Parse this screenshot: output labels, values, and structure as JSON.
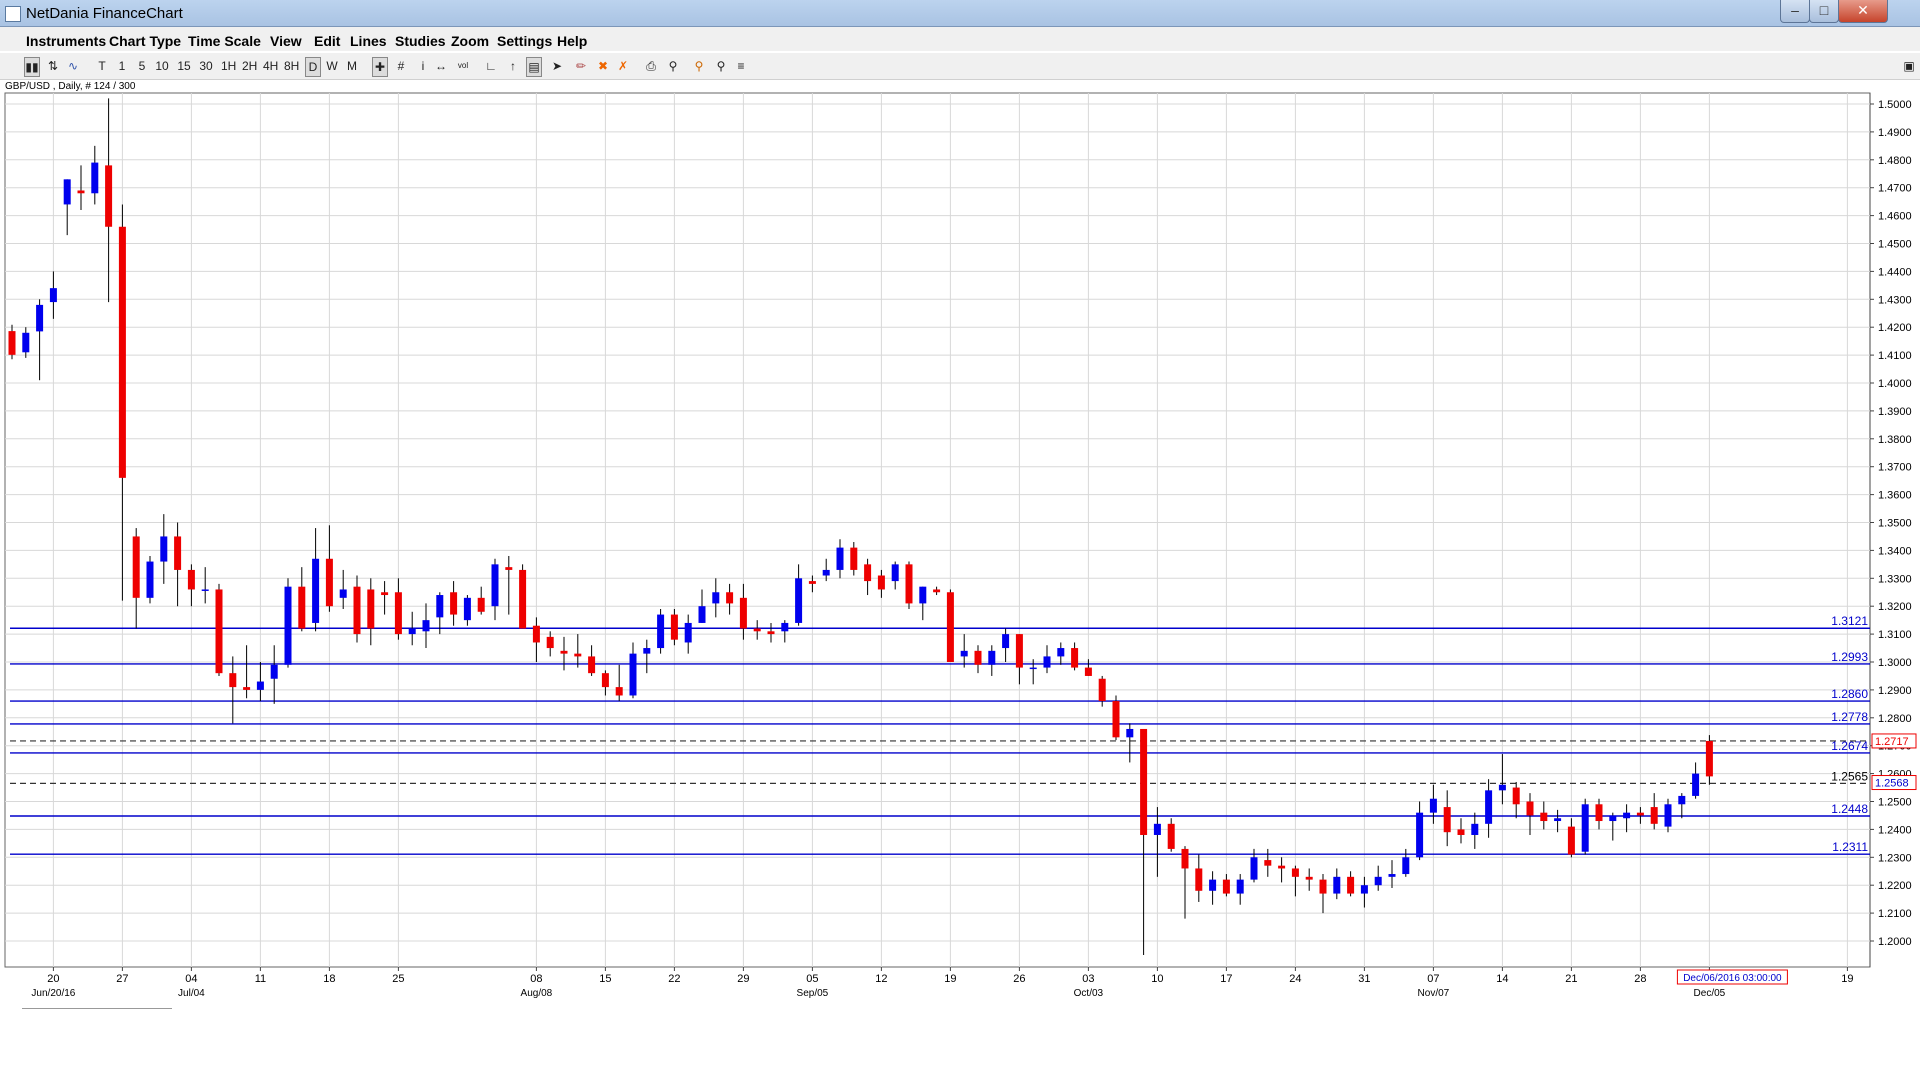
{
  "window": {
    "title": "NetDania FinanceChart",
    "controls": {
      "minimize": "–",
      "maximize": "□",
      "close": "✕"
    }
  },
  "menu": [
    "Instruments",
    "Chart Type",
    "Time Scale",
    "View",
    "Edit",
    "Lines",
    "Studies",
    "Zoom",
    "Settings",
    "Help"
  ],
  "toolbar": {
    "timeframes": [
      "T",
      "1",
      "5",
      "10",
      "15",
      "30",
      "1H",
      "2H",
      "4H",
      "8H",
      "D",
      "W",
      "M"
    ],
    "selected_timeframe": "D",
    "icons": [
      "candles-icon",
      "bars-icon",
      "line-icon",
      "crosshair-icon",
      "grid-icon",
      "info-icon",
      "arrows-icon",
      "volume-icon",
      "trendline-icon",
      "fib-icon",
      "channel-icon",
      "pointer-icon",
      "draw-icon",
      "delete-icon",
      "delete-all-icon",
      "print-icon",
      "zoom-region-icon",
      "zoom-in-icon",
      "zoom-out-icon",
      "fit-icon"
    ]
  },
  "symbol_info": "GBP/USD , Daily, # 124 / 300",
  "colors": {
    "up": "#0000ee",
    "down": "#ee0000",
    "level": "#0000cc",
    "grid": "#d8d8d8",
    "marker": "#ee0000"
  },
  "chart_data": {
    "type": "candlestick",
    "ylim": [
      1.19,
      1.51
    ],
    "y_ticks": [
      "1.2000",
      "1.2100",
      "1.2200",
      "1.2300",
      "1.2400",
      "1.2500",
      "1.2600",
      "1.2700",
      "1.2800",
      "1.2900",
      "1.3000",
      "1.3100",
      "1.3200",
      "1.3300",
      "1.3400",
      "1.3500",
      "1.3600",
      "1.3700",
      "1.3800",
      "1.3900",
      "1.4000",
      "1.4100",
      "1.4200",
      "1.4300",
      "1.4400",
      "1.4500",
      "1.4600",
      "1.4700",
      "1.4800",
      "1.4900",
      "1.5000"
    ],
    "x_labels": [
      {
        "day": "20",
        "month": "Jun/20/16",
        "i": 3
      },
      {
        "day": "27",
        "month": "",
        "i": 8
      },
      {
        "day": "04",
        "month": "Jul/04",
        "i": 13
      },
      {
        "day": "11",
        "month": "",
        "i": 18
      },
      {
        "day": "18",
        "month": "",
        "i": 23
      },
      {
        "day": "25",
        "month": "",
        "i": 28
      },
      {
        "day": "08",
        "month": "Aug/08",
        "i": 38
      },
      {
        "day": "15",
        "month": "",
        "i": 43
      },
      {
        "day": "22",
        "month": "",
        "i": 48
      },
      {
        "day": "29",
        "month": "",
        "i": 53
      },
      {
        "day": "05",
        "month": "Sep/05",
        "i": 58
      },
      {
        "day": "12",
        "month": "",
        "i": 63
      },
      {
        "day": "19",
        "month": "",
        "i": 68
      },
      {
        "day": "26",
        "month": "",
        "i": 73
      },
      {
        "day": "03",
        "month": "Oct/03",
        "i": 78
      },
      {
        "day": "10",
        "month": "",
        "i": 83
      },
      {
        "day": "17",
        "month": "",
        "i": 88
      },
      {
        "day": "24",
        "month": "",
        "i": 93
      },
      {
        "day": "31",
        "month": "",
        "i": 98
      },
      {
        "day": "07",
        "month": "Nov/07",
        "i": 103
      },
      {
        "day": "14",
        "month": "",
        "i": 108
      },
      {
        "day": "21",
        "month": "",
        "i": 113
      },
      {
        "day": "28",
        "month": "",
        "i": 118
      },
      {
        "day": "",
        "month": "Dec/05",
        "i": 123
      },
      {
        "day": "19",
        "month": "",
        "i": 133
      }
    ],
    "levels": [
      {
        "value": 1.3121,
        "label": "1.3121",
        "style": "solid"
      },
      {
        "value": 1.2993,
        "label": "1.2993",
        "style": "solid"
      },
      {
        "value": 1.286,
        "label": "1.2860",
        "style": "solid"
      },
      {
        "value": 1.2778,
        "label": "1.2778",
        "style": "solid"
      },
      {
        "value": 1.2674,
        "label": "1.2674",
        "style": "solid"
      },
      {
        "value": 1.2448,
        "label": "1.2448",
        "style": "solid"
      },
      {
        "value": 1.2311,
        "label": "1.2311",
        "style": "solid"
      },
      {
        "value": 1.2717,
        "label": "",
        "style": "dashed"
      },
      {
        "value": 1.2565,
        "label": "1.2565",
        "style": "dashed"
      }
    ],
    "price_markers": [
      {
        "label": "1.2717",
        "value": 1.2717
      },
      {
        "label": "1.2568",
        "value": 1.2568
      }
    ],
    "cursor_date": "Dec/06/2016 03:00:00",
    "candles": [
      {
        "o": 1.4186,
        "h": 1.4209,
        "l": 1.4085,
        "c": 1.4101
      },
      {
        "o": 1.411,
        "h": 1.42,
        "l": 1.409,
        "c": 1.418
      },
      {
        "o": 1.4185,
        "h": 1.43,
        "l": 1.401,
        "c": 1.428
      },
      {
        "o": 1.429,
        "h": 1.44,
        "l": 1.423,
        "c": 1.434
      },
      {
        "o": 1.464,
        "h": 1.473,
        "l": 1.453,
        "c": 1.473
      },
      {
        "o": 1.469,
        "h": 1.478,
        "l": 1.462,
        "c": 1.468
      },
      {
        "o": 1.468,
        "h": 1.485,
        "l": 1.464,
        "c": 1.479
      },
      {
        "o": 1.478,
        "h": 1.502,
        "l": 1.429,
        "c": 1.456
      },
      {
        "o": 1.456,
        "h": 1.464,
        "l": 1.322,
        "c": 1.366
      },
      {
        "o": 1.345,
        "h": 1.348,
        "l": 1.312,
        "c": 1.323
      },
      {
        "o": 1.323,
        "h": 1.338,
        "l": 1.321,
        "c": 1.336
      },
      {
        "o": 1.336,
        "h": 1.353,
        "l": 1.328,
        "c": 1.345
      },
      {
        "o": 1.345,
        "h": 1.35,
        "l": 1.32,
        "c": 1.333
      },
      {
        "o": 1.333,
        "h": 1.335,
        "l": 1.32,
        "c": 1.326
      },
      {
        "o": 1.326,
        "h": 1.334,
        "l": 1.321,
        "c": 1.326
      },
      {
        "o": 1.326,
        "h": 1.328,
        "l": 1.295,
        "c": 1.296
      },
      {
        "o": 1.296,
        "h": 1.302,
        "l": 1.278,
        "c": 1.291
      },
      {
        "o": 1.291,
        "h": 1.306,
        "l": 1.287,
        "c": 1.29
      },
      {
        "o": 1.29,
        "h": 1.3,
        "l": 1.286,
        "c": 1.293
      },
      {
        "o": 1.294,
        "h": 1.306,
        "l": 1.285,
        "c": 1.299
      },
      {
        "o": 1.299,
        "h": 1.33,
        "l": 1.298,
        "c": 1.327
      },
      {
        "o": 1.327,
        "h": 1.334,
        "l": 1.311,
        "c": 1.312
      },
      {
        "o": 1.314,
        "h": 1.348,
        "l": 1.311,
        "c": 1.337
      },
      {
        "o": 1.337,
        "h": 1.349,
        "l": 1.318,
        "c": 1.32
      },
      {
        "o": 1.323,
        "h": 1.333,
        "l": 1.319,
        "c": 1.326
      },
      {
        "o": 1.327,
        "h": 1.331,
        "l": 1.307,
        "c": 1.31
      },
      {
        "o": 1.326,
        "h": 1.33,
        "l": 1.306,
        "c": 1.312
      },
      {
        "o": 1.325,
        "h": 1.329,
        "l": 1.317,
        "c": 1.324
      },
      {
        "o": 1.325,
        "h": 1.33,
        "l": 1.308,
        "c": 1.31
      },
      {
        "o": 1.31,
        "h": 1.318,
        "l": 1.306,
        "c": 1.312
      },
      {
        "o": 1.311,
        "h": 1.321,
        "l": 1.305,
        "c": 1.315
      },
      {
        "o": 1.316,
        "h": 1.325,
        "l": 1.31,
        "c": 1.324
      },
      {
        "o": 1.325,
        "h": 1.329,
        "l": 1.313,
        "c": 1.317
      },
      {
        "o": 1.315,
        "h": 1.324,
        "l": 1.313,
        "c": 1.323
      },
      {
        "o": 1.323,
        "h": 1.327,
        "l": 1.317,
        "c": 1.318
      },
      {
        "o": 1.32,
        "h": 1.337,
        "l": 1.315,
        "c": 1.335
      },
      {
        "o": 1.334,
        "h": 1.338,
        "l": 1.317,
        "c": 1.333
      },
      {
        "o": 1.333,
        "h": 1.335,
        "l": 1.312,
        "c": 1.312
      },
      {
        "o": 1.313,
        "h": 1.316,
        "l": 1.3,
        "c": 1.307
      },
      {
        "o": 1.309,
        "h": 1.311,
        "l": 1.302,
        "c": 1.305
      },
      {
        "o": 1.304,
        "h": 1.309,
        "l": 1.297,
        "c": 1.303
      },
      {
        "o": 1.303,
        "h": 1.31,
        "l": 1.298,
        "c": 1.302
      },
      {
        "o": 1.302,
        "h": 1.306,
        "l": 1.295,
        "c": 1.296
      },
      {
        "o": 1.296,
        "h": 1.297,
        "l": 1.288,
        "c": 1.291
      },
      {
        "o": 1.291,
        "h": 1.299,
        "l": 1.286,
        "c": 1.288
      },
      {
        "o": 1.288,
        "h": 1.307,
        "l": 1.287,
        "c": 1.303
      },
      {
        "o": 1.303,
        "h": 1.308,
        "l": 1.296,
        "c": 1.305
      },
      {
        "o": 1.305,
        "h": 1.319,
        "l": 1.303,
        "c": 1.317
      },
      {
        "o": 1.317,
        "h": 1.319,
        "l": 1.306,
        "c": 1.308
      },
      {
        "o": 1.307,
        "h": 1.317,
        "l": 1.303,
        "c": 1.314
      },
      {
        "o": 1.314,
        "h": 1.326,
        "l": 1.314,
        "c": 1.32
      },
      {
        "o": 1.321,
        "h": 1.33,
        "l": 1.316,
        "c": 1.325
      },
      {
        "o": 1.325,
        "h": 1.328,
        "l": 1.317,
        "c": 1.321
      },
      {
        "o": 1.323,
        "h": 1.328,
        "l": 1.308,
        "c": 1.312
      },
      {
        "o": 1.312,
        "h": 1.315,
        "l": 1.308,
        "c": 1.311
      },
      {
        "o": 1.311,
        "h": 1.314,
        "l": 1.307,
        "c": 1.31
      },
      {
        "o": 1.311,
        "h": 1.315,
        "l": 1.307,
        "c": 1.314
      },
      {
        "o": 1.314,
        "h": 1.335,
        "l": 1.313,
        "c": 1.33
      },
      {
        "o": 1.329,
        "h": 1.331,
        "l": 1.325,
        "c": 1.328
      },
      {
        "o": 1.331,
        "h": 1.337,
        "l": 1.329,
        "c": 1.333
      },
      {
        "o": 1.333,
        "h": 1.344,
        "l": 1.33,
        "c": 1.341
      },
      {
        "o": 1.341,
        "h": 1.343,
        "l": 1.331,
        "c": 1.333
      },
      {
        "o": 1.335,
        "h": 1.337,
        "l": 1.324,
        "c": 1.329
      },
      {
        "o": 1.331,
        "h": 1.333,
        "l": 1.323,
        "c": 1.326
      },
      {
        "o": 1.329,
        "h": 1.336,
        "l": 1.326,
        "c": 1.335
      },
      {
        "o": 1.335,
        "h": 1.336,
        "l": 1.319,
        "c": 1.321
      },
      {
        "o": 1.321,
        "h": 1.327,
        "l": 1.315,
        "c": 1.327
      },
      {
        "o": 1.326,
        "h": 1.327,
        "l": 1.324,
        "c": 1.325
      },
      {
        "o": 1.325,
        "h": 1.326,
        "l": 1.3,
        "c": 1.3
      },
      {
        "o": 1.302,
        "h": 1.31,
        "l": 1.298,
        "c": 1.304
      },
      {
        "o": 1.304,
        "h": 1.306,
        "l": 1.296,
        "c": 1.299
      },
      {
        "o": 1.299,
        "h": 1.306,
        "l": 1.295,
        "c": 1.304
      },
      {
        "o": 1.305,
        "h": 1.312,
        "l": 1.3,
        "c": 1.31
      },
      {
        "o": 1.31,
        "h": 1.31,
        "l": 1.292,
        "c": 1.298
      },
      {
        "o": 1.298,
        "h": 1.301,
        "l": 1.292,
        "c": 1.298
      },
      {
        "o": 1.298,
        "h": 1.306,
        "l": 1.296,
        "c": 1.302
      },
      {
        "o": 1.302,
        "h": 1.307,
        "l": 1.299,
        "c": 1.305
      },
      {
        "o": 1.305,
        "h": 1.307,
        "l": 1.297,
        "c": 1.298
      },
      {
        "o": 1.298,
        "h": 1.301,
        "l": 1.295,
        "c": 1.295
      },
      {
        "o": 1.294,
        "h": 1.295,
        "l": 1.284,
        "c": 1.286
      },
      {
        "o": 1.286,
        "h": 1.288,
        "l": 1.272,
        "c": 1.273
      },
      {
        "o": 1.273,
        "h": 1.278,
        "l": 1.264,
        "c": 1.276
      },
      {
        "o": 1.276,
        "h": 1.276,
        "l": 1.195,
        "c": 1.238
      },
      {
        "o": 1.238,
        "h": 1.248,
        "l": 1.223,
        "c": 1.242
      },
      {
        "o": 1.242,
        "h": 1.244,
        "l": 1.232,
        "c": 1.233
      },
      {
        "o": 1.233,
        "h": 1.234,
        "l": 1.208,
        "c": 1.226
      },
      {
        "o": 1.226,
        "h": 1.231,
        "l": 1.214,
        "c": 1.218
      },
      {
        "o": 1.218,
        "h": 1.225,
        "l": 1.213,
        "c": 1.222
      },
      {
        "o": 1.222,
        "h": 1.224,
        "l": 1.216,
        "c": 1.217
      },
      {
        "o": 1.217,
        "h": 1.224,
        "l": 1.213,
        "c": 1.222
      },
      {
        "o": 1.222,
        "h": 1.233,
        "l": 1.221,
        "c": 1.23
      },
      {
        "o": 1.229,
        "h": 1.233,
        "l": 1.223,
        "c": 1.227
      },
      {
        "o": 1.227,
        "h": 1.23,
        "l": 1.221,
        "c": 1.226
      },
      {
        "o": 1.226,
        "h": 1.227,
        "l": 1.216,
        "c": 1.223
      },
      {
        "o": 1.223,
        "h": 1.226,
        "l": 1.218,
        "c": 1.222
      },
      {
        "o": 1.222,
        "h": 1.224,
        "l": 1.21,
        "c": 1.217
      },
      {
        "o": 1.217,
        "h": 1.226,
        "l": 1.215,
        "c": 1.223
      },
      {
        "o": 1.223,
        "h": 1.225,
        "l": 1.216,
        "c": 1.217
      },
      {
        "o": 1.217,
        "h": 1.223,
        "l": 1.212,
        "c": 1.22
      },
      {
        "o": 1.22,
        "h": 1.227,
        "l": 1.218,
        "c": 1.223
      },
      {
        "o": 1.223,
        "h": 1.229,
        "l": 1.219,
        "c": 1.224
      },
      {
        "o": 1.224,
        "h": 1.233,
        "l": 1.223,
        "c": 1.23
      },
      {
        "o": 1.23,
        "h": 1.25,
        "l": 1.229,
        "c": 1.246
      },
      {
        "o": 1.246,
        "h": 1.256,
        "l": 1.242,
        "c": 1.251
      },
      {
        "o": 1.248,
        "h": 1.254,
        "l": 1.234,
        "c": 1.239
      },
      {
        "o": 1.24,
        "h": 1.244,
        "l": 1.235,
        "c": 1.238
      },
      {
        "o": 1.238,
        "h": 1.246,
        "l": 1.233,
        "c": 1.242
      },
      {
        "o": 1.242,
        "h": 1.258,
        "l": 1.237,
        "c": 1.254
      },
      {
        "o": 1.254,
        "h": 1.267,
        "l": 1.249,
        "c": 1.256
      },
      {
        "o": 1.255,
        "h": 1.257,
        "l": 1.244,
        "c": 1.249
      },
      {
        "o": 1.25,
        "h": 1.253,
        "l": 1.238,
        "c": 1.245
      },
      {
        "o": 1.246,
        "h": 1.25,
        "l": 1.24,
        "c": 1.243
      },
      {
        "o": 1.243,
        "h": 1.247,
        "l": 1.239,
        "c": 1.244
      },
      {
        "o": 1.241,
        "h": 1.244,
        "l": 1.23,
        "c": 1.231
      },
      {
        "o": 1.232,
        "h": 1.251,
        "l": 1.231,
        "c": 1.249
      },
      {
        "o": 1.249,
        "h": 1.251,
        "l": 1.24,
        "c": 1.243
      },
      {
        "o": 1.243,
        "h": 1.246,
        "l": 1.236,
        "c": 1.245
      },
      {
        "o": 1.244,
        "h": 1.249,
        "l": 1.239,
        "c": 1.246
      },
      {
        "o": 1.246,
        "h": 1.248,
        "l": 1.242,
        "c": 1.245
      },
      {
        "o": 1.248,
        "h": 1.253,
        "l": 1.24,
        "c": 1.242
      },
      {
        "o": 1.241,
        "h": 1.251,
        "l": 1.239,
        "c": 1.249
      },
      {
        "o": 1.249,
        "h": 1.253,
        "l": 1.244,
        "c": 1.252
      },
      {
        "o": 1.252,
        "h": 1.264,
        "l": 1.251,
        "c": 1.26
      },
      {
        "o": 1.2717,
        "h": 1.2738,
        "l": 1.256,
        "c": 1.259
      }
    ]
  }
}
